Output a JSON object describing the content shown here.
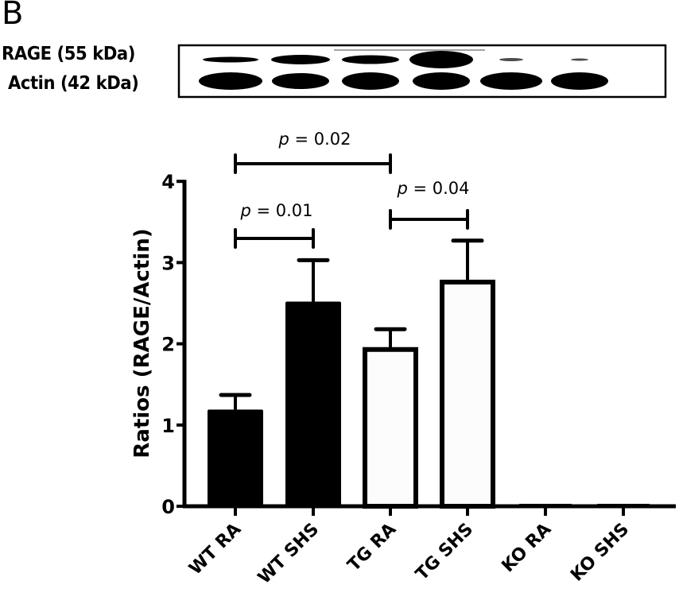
{
  "panel": {
    "letter": "B"
  },
  "blot": {
    "rows": [
      {
        "label": "RAGE (55 kDa)",
        "band_widths": [
          70,
          74,
          72,
          80,
          30,
          22
        ],
        "band_heights": [
          7,
          12,
          11,
          22,
          4,
          3
        ]
      },
      {
        "label": "Actin (42 kDa)",
        "band_widths": [
          80,
          72,
          72,
          72,
          78,
          72
        ],
        "band_heights": [
          22,
          20,
          22,
          22,
          22,
          22
        ]
      }
    ]
  },
  "significance": [
    {
      "label_p": "p",
      "label_rest": " = 0.02",
      "from": 0,
      "to": 2
    },
    {
      "label_p": "p",
      "label_rest": " = 0.01",
      "from": 0,
      "to": 1
    },
    {
      "label_p": "p",
      "label_rest": " = 0.04",
      "from": 2,
      "to": 3
    }
  ],
  "chart_data": {
    "type": "bar",
    "title": "",
    "xlabel": "",
    "ylabel": "Ratios (RAGE/Actin)",
    "ylim": [
      0,
      4
    ],
    "yticks": [
      0,
      1,
      2,
      3,
      4
    ],
    "grid": false,
    "categories": [
      "WT RA",
      "WT SHS",
      "TG RA",
      "TG SHS",
      "KO RA",
      "KO SHS"
    ],
    "values": [
      1.19,
      2.52,
      1.93,
      2.76,
      0.02,
      0.02
    ],
    "error_upper": [
      0.18,
      0.51,
      0.25,
      0.51,
      0,
      0
    ],
    "bar_fill": [
      "#000000",
      "#000000",
      "#ffffff",
      "#ffffff",
      "#ffffff",
      "#ffffff"
    ],
    "annotations": [
      "p = 0.02 (WT RA vs TG RA)",
      "p = 0.01 (WT RA vs WT SHS)",
      "p = 0.04 (TG RA vs TG SHS)"
    ]
  }
}
